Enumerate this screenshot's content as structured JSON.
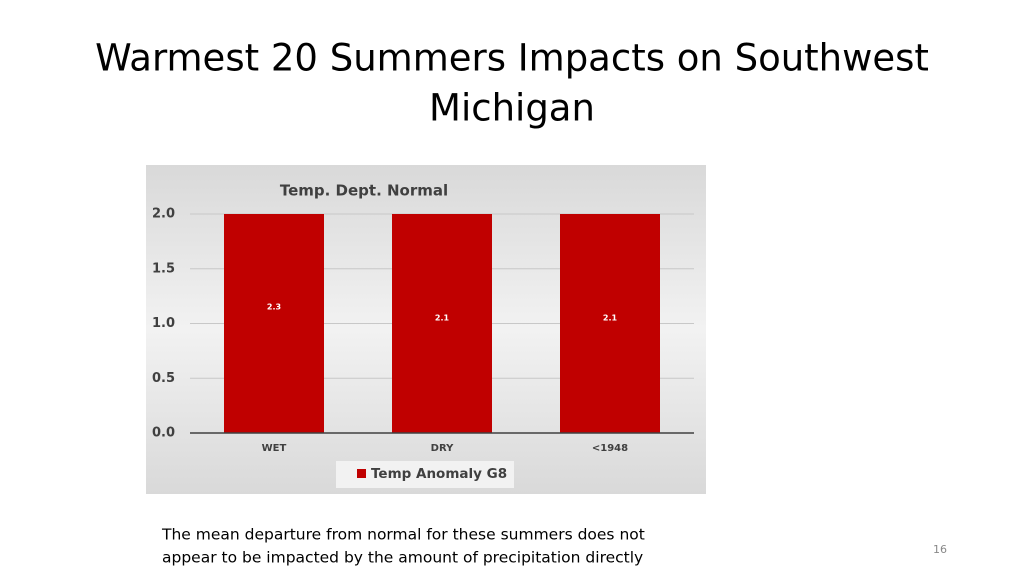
{
  "slide": {
    "title_lines": [
      "Warmest 20 Summers Impacts on Southwest",
      "Michigan"
    ],
    "caption_lines": [
      "The mean departure from normal for these summers does not",
      "appear to be impacted by the amount of precipitation directly"
    ],
    "page_number": "16"
  },
  "chart_data": {
    "type": "bar",
    "title": "Temp. Dept. Normal",
    "categories": [
      "WET",
      "DRY",
      "<1948"
    ],
    "series": [
      {
        "name": "Temp Anomaly G8",
        "color": "#c00000",
        "values": [
          2.3,
          2.1,
          2.1
        ]
      }
    ],
    "ylim": [
      0,
      2
    ],
    "yticks": [
      {
        "value": 0,
        "label": "0.0"
      },
      0.5,
      {
        "value": 1,
        "label": "1.0"
      },
      1.5,
      {
        "value": 2,
        "label": "2.0"
      }
    ],
    "grid": true,
    "legend": "bottom",
    "data_labels": true
  }
}
